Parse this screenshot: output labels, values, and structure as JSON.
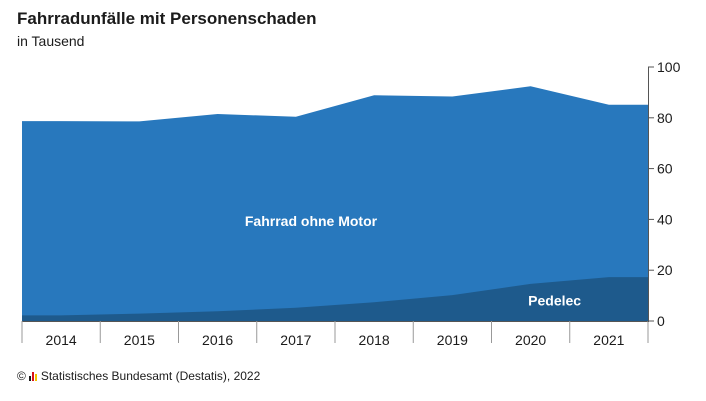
{
  "title": "Fahrradunfälle mit Personenschaden",
  "subtitle": "in Tausend",
  "source": {
    "copyright": "©",
    "text": "Statistisches Bundesamt (Destatis), 2022",
    "logo_colors": [
      "#1b1b1b",
      "#d9121a",
      "#f2c300"
    ]
  },
  "colors": {
    "total_area": "#2878bd",
    "pedelec_area": "#1e5a8c",
    "axis": "#555555",
    "area_label": "#ffffff"
  },
  "chart_data": {
    "type": "area",
    "title": "Fahrradunfälle mit Personenschaden",
    "subtitle": "in Tausend",
    "categories": [
      "2014",
      "2015",
      "2016",
      "2017",
      "2018",
      "2019",
      "2020",
      "2021"
    ],
    "series": [
      {
        "name": "Pedelec",
        "stack": "bottom",
        "values": [
          2.2,
          2.9,
          3.8,
          5.2,
          7.4,
          10.2,
          14.6,
          17.3
        ]
      },
      {
        "name": "Fahrrad ohne Motor",
        "stack": "top",
        "values": [
          76.5,
          75.7,
          77.7,
          75.2,
          81.5,
          78.2,
          77.8,
          67.8
        ]
      }
    ],
    "yticks": [
      0,
      20,
      40,
      60,
      80,
      100
    ],
    "ylim": [
      0,
      100
    ],
    "yaxis_side": "right",
    "grid": false,
    "legend": "none (labels inside areas)"
  }
}
